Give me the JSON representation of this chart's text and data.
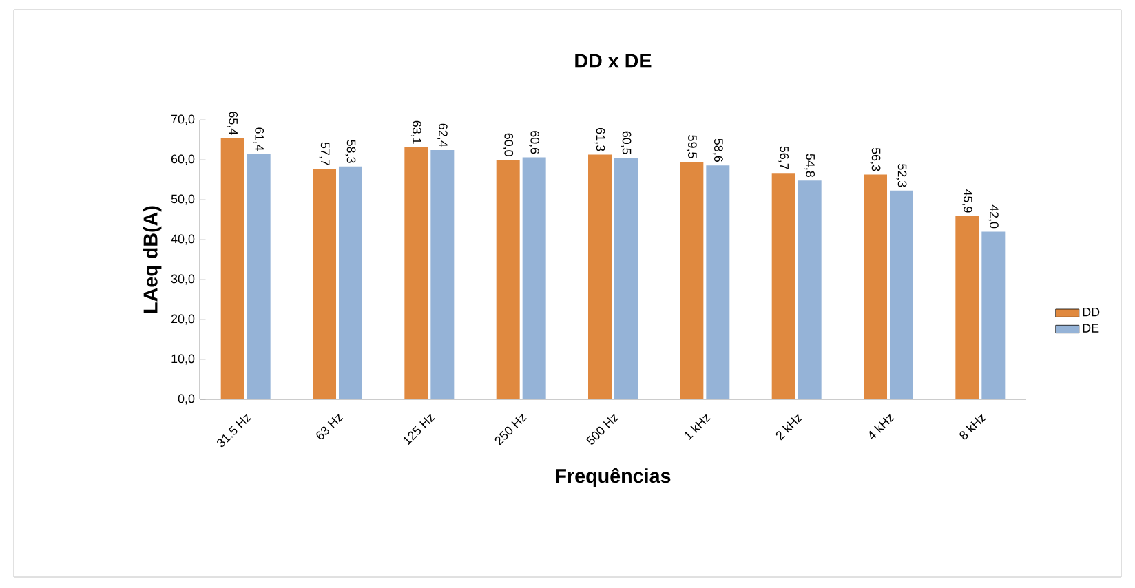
{
  "chart_data": {
    "type": "bar",
    "title": "DD x DE",
    "xlabel": "Frequências",
    "ylabel": "LAeq dB(A)",
    "categories": [
      "31.5 Hz",
      "63 Hz",
      "125 Hz",
      "250 Hz",
      "500 Hz",
      "1 kHz",
      "2 kHz",
      "4 kHz",
      "8 kHz"
    ],
    "series": [
      {
        "name": "DD",
        "color": "#e0893f",
        "values": [
          65.4,
          57.7,
          63.1,
          60.0,
          61.3,
          59.5,
          56.7,
          56.3,
          45.9
        ],
        "value_labels": [
          "65,4",
          "57,7",
          "63,1",
          "60,0",
          "61,3",
          "59,5",
          "56,7",
          "56,3",
          "45,9"
        ]
      },
      {
        "name": "DE",
        "color": "#95b3d7",
        "values": [
          61.4,
          58.3,
          62.4,
          60.6,
          60.5,
          58.6,
          54.8,
          52.3,
          42.0
        ],
        "value_labels": [
          "61,4",
          "58,3",
          "62,4",
          "60,6",
          "60,5",
          "58,6",
          "54,8",
          "52,3",
          "42,0"
        ]
      }
    ],
    "ylim": [
      0,
      70
    ],
    "yticks": [
      {
        "value": 0,
        "label": "0,0"
      },
      {
        "value": 10,
        "label": "10,0"
      },
      {
        "value": 20,
        "label": "20,0"
      },
      {
        "value": 30,
        "label": "30,0"
      },
      {
        "value": 40,
        "label": "40,0"
      },
      {
        "value": 50,
        "label": "50,0"
      },
      {
        "value": 60,
        "label": "60,0"
      },
      {
        "value": 70,
        "label": "70,0"
      }
    ],
    "legend": "right",
    "grid": false
  }
}
